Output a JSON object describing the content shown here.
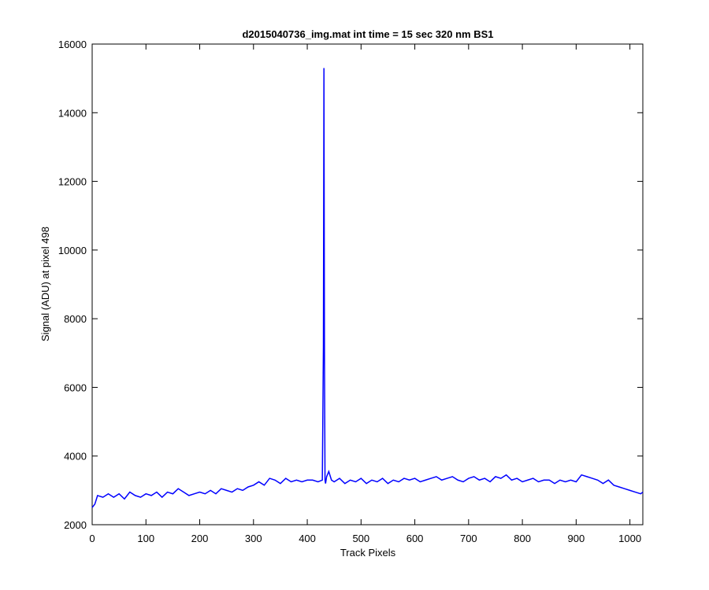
{
  "chart_data": {
    "type": "line",
    "title": "d2015040736_img.mat int time = 15 sec  320 nm BS1",
    "xlabel": "Track Pixels",
    "ylabel": "Signal (ADU) at pixel 498",
    "xlim": [
      0,
      1024
    ],
    "ylim": [
      2000,
      16000
    ],
    "xticks": [
      0,
      100,
      200,
      300,
      400,
      500,
      600,
      700,
      800,
      900,
      1000
    ],
    "yticks": [
      2000,
      4000,
      6000,
      8000,
      10000,
      12000,
      14000,
      16000
    ],
    "grid": false,
    "line_color": "#0000ff",
    "series": [
      {
        "x": [
          0,
          5,
          10,
          20,
          30,
          40,
          50,
          60,
          70,
          80,
          90,
          100,
          110,
          120,
          130,
          140,
          150,
          160,
          170,
          180,
          190,
          200,
          210,
          220,
          230,
          240,
          250,
          260,
          270,
          280,
          290,
          300,
          310,
          320,
          330,
          340,
          350,
          360,
          370,
          380,
          390,
          400,
          410,
          420,
          428,
          430,
          431,
          432,
          433,
          434,
          436,
          440,
          445,
          450,
          460,
          470,
          480,
          490,
          500,
          510,
          520,
          530,
          540,
          550,
          560,
          570,
          580,
          590,
          600,
          610,
          620,
          630,
          640,
          650,
          660,
          670,
          680,
          690,
          700,
          710,
          720,
          730,
          740,
          750,
          760,
          770,
          780,
          790,
          800,
          810,
          820,
          830,
          840,
          850,
          860,
          870,
          880,
          890,
          900,
          910,
          920,
          930,
          940,
          950,
          960,
          970,
          980,
          990,
          1000,
          1010,
          1020,
          1024
        ],
        "y": [
          2500,
          2600,
          2850,
          2800,
          2900,
          2800,
          2900,
          2750,
          2950,
          2850,
          2800,
          2900,
          2850,
          2950,
          2800,
          2950,
          2900,
          3050,
          2950,
          2850,
          2900,
          2950,
          2900,
          3000,
          2900,
          3050,
          3000,
          2950,
          3050,
          3000,
          3100,
          3150,
          3250,
          3150,
          3350,
          3300,
          3200,
          3350,
          3250,
          3300,
          3250,
          3300,
          3300,
          3250,
          3300,
          7200,
          15300,
          6800,
          3300,
          3200,
          3400,
          3550,
          3300,
          3250,
          3350,
          3200,
          3300,
          3250,
          3350,
          3200,
          3300,
          3250,
          3350,
          3200,
          3300,
          3250,
          3350,
          3300,
          3350,
          3250,
          3300,
          3350,
          3400,
          3300,
          3350,
          3400,
          3300,
          3250,
          3350,
          3400,
          3300,
          3350,
          3250,
          3400,
          3350,
          3450,
          3300,
          3350,
          3250,
          3300,
          3350,
          3250,
          3300,
          3300,
          3200,
          3300,
          3250,
          3300,
          3250,
          3450,
          3400,
          3350,
          3300,
          3200,
          3300,
          3150,
          3100,
          3050,
          3000,
          2950,
          2900,
          2950
        ]
      }
    ]
  }
}
